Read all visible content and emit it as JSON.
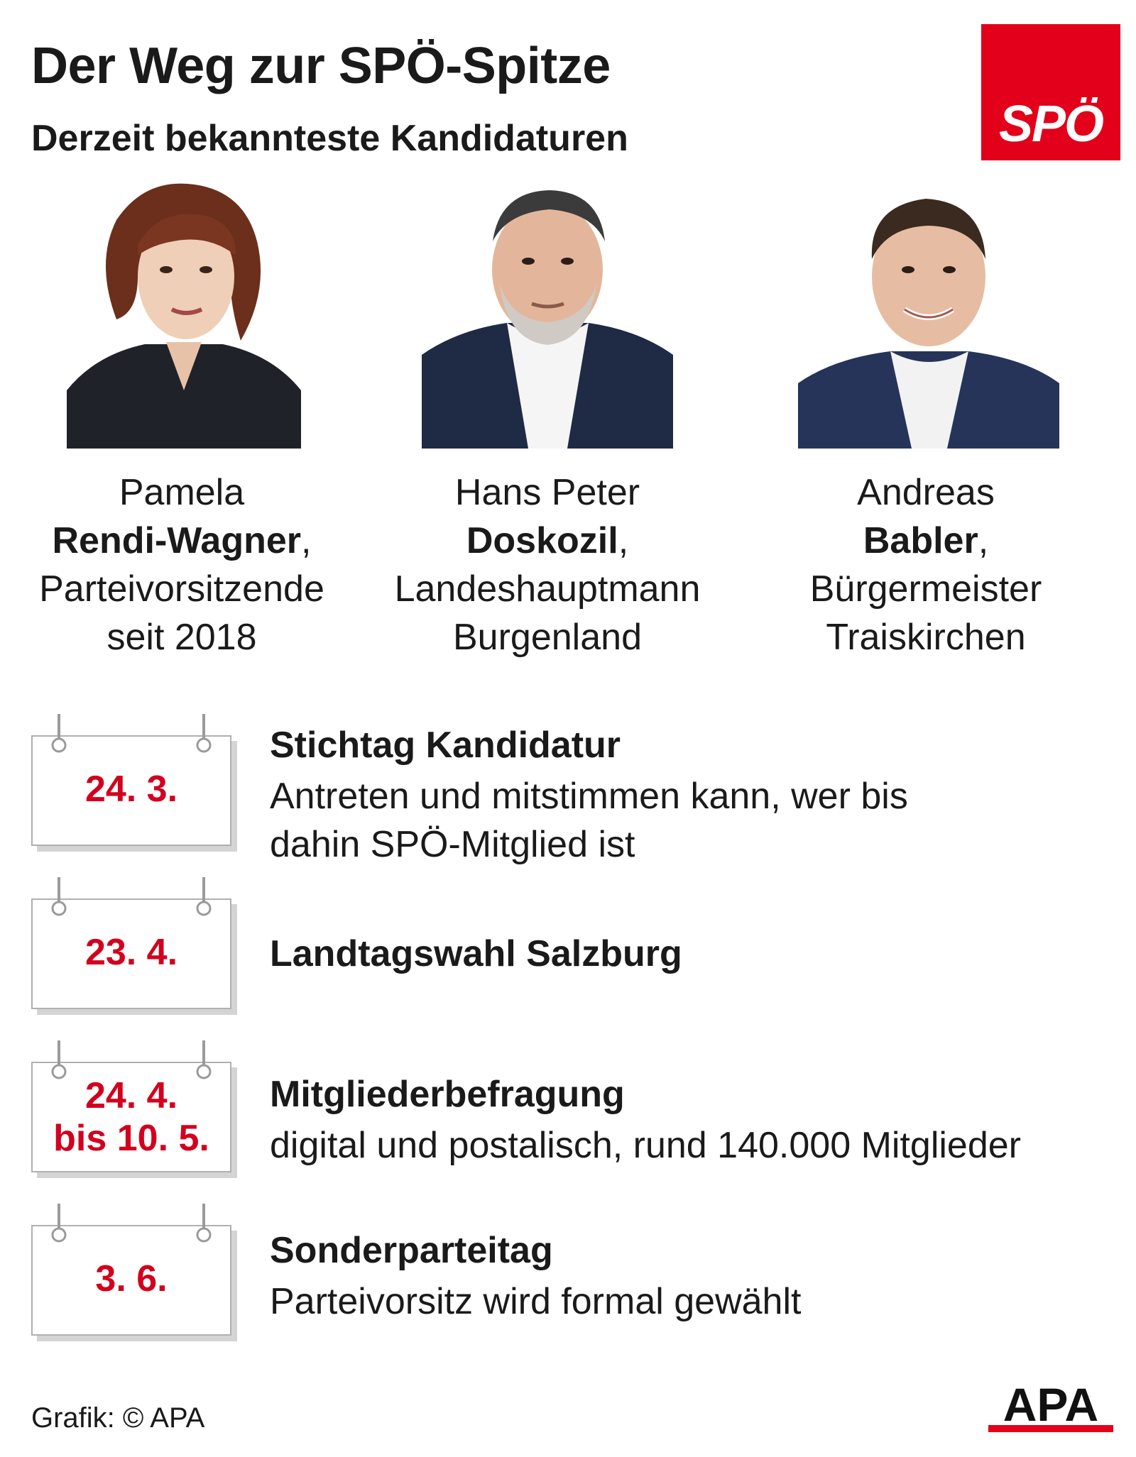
{
  "header": {
    "title": "Der Weg zur SPÖ-Spitze",
    "subtitle": "Derzeit bekannteste Kandidaturen"
  },
  "logos": {
    "party": "SPÖ",
    "agency": "APA"
  },
  "colors": {
    "party_red": "#e2001a",
    "date_red": "#d2001e",
    "text": "#1a1a1a"
  },
  "candidates": [
    {
      "first": "Pamela",
      "last": "Rendi-Wagner",
      "sep": ",",
      "role1": "Parteivorsitzende",
      "role2": "seit 2018"
    },
    {
      "first": "Hans Peter",
      "last": "Doskozil",
      "sep": ",",
      "role1": "Landeshauptmann",
      "role2": "Burgenland"
    },
    {
      "first": "Andreas",
      "last": "Babler",
      "sep": ",",
      "role1": "Bürgermeister",
      "role2": "Traiskirchen"
    }
  ],
  "timeline": [
    {
      "date": "24. 3.",
      "title": "Stichtag Kandidatur",
      "desc1": "Antreten und mitstimmen kann, wer bis",
      "desc2": "dahin SPÖ-Mitglied ist"
    },
    {
      "date": "23. 4.",
      "title": "Landtagswahl Salzburg"
    },
    {
      "date1": "24. 4.",
      "date2": "bis 10. 5.",
      "title": "Mitgliederbefragung",
      "desc1": "digital und postalisch, rund 140.000 Mitglieder"
    },
    {
      "date": "3. 6.",
      "title": "Sonderparteitag",
      "desc1": "Parteivorsitz wird formal gewählt"
    }
  ],
  "footer": {
    "credit": "Grafik: © APA"
  }
}
